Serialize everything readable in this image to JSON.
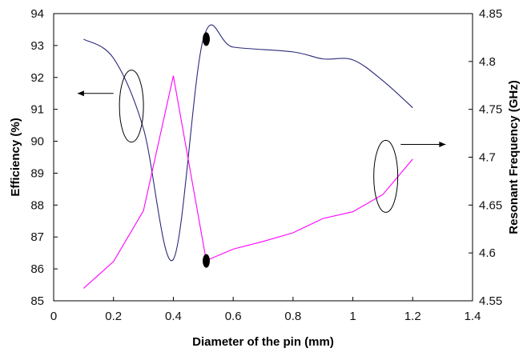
{
  "chart_data": {
    "type": "line",
    "title": "",
    "xlabel": "Diameter of the pin (mm)",
    "ylabel": "Efficiency (%)",
    "y2label": "Resonant Frequency (GHz)",
    "xlim": [
      0,
      1.4
    ],
    "ylim": [
      85,
      94
    ],
    "y2lim": [
      4.55,
      4.85
    ],
    "x_ticks": [
      "0",
      "0.2",
      "0.4",
      "0.6",
      "0.8",
      "1",
      "1.2",
      "1.4"
    ],
    "y_ticks": [
      "85",
      "86",
      "87",
      "88",
      "89",
      "90",
      "91",
      "92",
      "93",
      "94"
    ],
    "y2_ticks": [
      "4.55",
      "4.6",
      "4.65",
      "4.7",
      "4.75",
      "4.8",
      "4.85"
    ],
    "grid": false,
    "legend": "none",
    "series": [
      {
        "axis": "left",
        "color": "#2a2a7a",
        "smooth": true,
        "x": [
          0.1,
          0.2,
          0.3,
          0.4,
          0.5,
          0.6,
          0.8,
          0.9,
          1.0,
          1.1,
          1.2
        ],
        "y": [
          93.2,
          92.6,
          90.4,
          86.3,
          93.2,
          92.95,
          92.8,
          92.58,
          92.55,
          91.9,
          91.05
        ]
      },
      {
        "axis": "right",
        "color": "#ff00ff",
        "smooth": false,
        "x": [
          0.1,
          0.2,
          0.3,
          0.4,
          0.51,
          0.6,
          0.7,
          0.8,
          0.9,
          1.0,
          1.1,
          1.2
        ],
        "y": [
          4.563,
          4.591,
          4.644,
          4.785,
          4.592,
          4.604,
          4.612,
          4.621,
          4.636,
          4.643,
          4.661,
          4.698
        ]
      }
    ],
    "annotations": [
      {
        "kind": "ellipse",
        "x": 0.26,
        "y": 91.1,
        "axis": "left"
      },
      {
        "kind": "arrow",
        "direction": "left",
        "from_x": 0.2,
        "to_x": 0.08,
        "y": 91.5,
        "axis": "left"
      },
      {
        "kind": "ellipse",
        "x": 1.11,
        "y": 88.9,
        "axis": "left"
      },
      {
        "kind": "arrow",
        "direction": "right",
        "from_x": 1.16,
        "to_x": 1.31,
        "y": 89.9,
        "axis": "left"
      },
      {
        "kind": "marker",
        "x": 0.51,
        "y": 93.2,
        "axis": "left"
      },
      {
        "kind": "marker",
        "x": 0.51,
        "y": 86.25,
        "axis": "left"
      }
    ]
  }
}
